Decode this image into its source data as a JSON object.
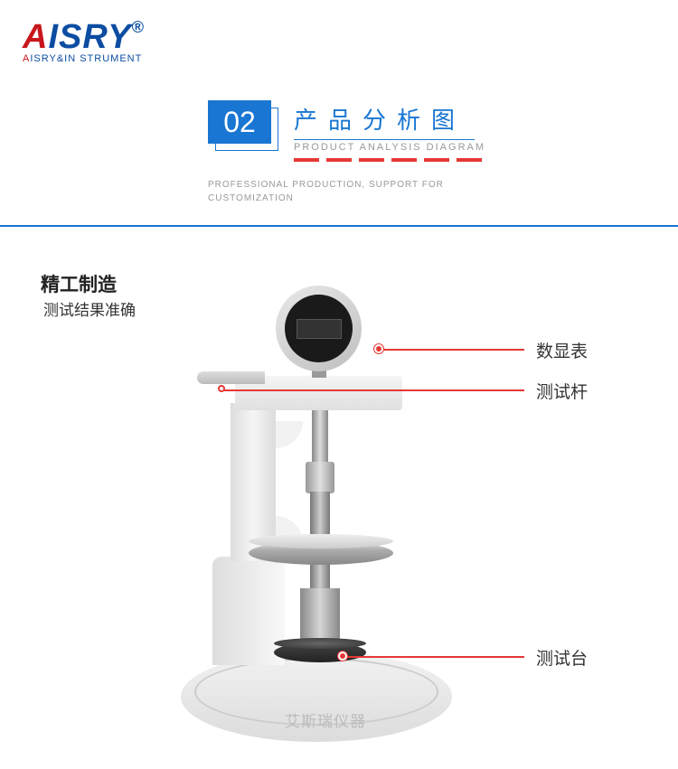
{
  "logo": {
    "brand": "AISRY",
    "reg": "®",
    "tagline_first": "A",
    "tagline_rest": "ISRY&IN STRUMENT"
  },
  "header": {
    "number": "02",
    "title_cn": "产品分析图",
    "title_en": "PRODUCT ANALYSIS DIAGRAM",
    "subtitle_line1": "PROFESSIONAL PRODUCTION, SUPPORT FOR",
    "subtitle_line2": "CUSTOMIZATION",
    "dash_color": "#e53935",
    "num_bg": "#1976d2"
  },
  "feature": {
    "title": "精工制造",
    "subtitle": "测试结果准确"
  },
  "callouts": {
    "gauge": "数显表",
    "rod": "测试杆",
    "platform": "测试台",
    "line_color": "#e53935"
  },
  "watermark": "艾斯瑞仪器",
  "colors": {
    "brand_blue": "#0c4da2",
    "accent_blue": "#1976d2",
    "accent_red": "#e53935",
    "logo_red": "#c8161d",
    "text_dark": "#222",
    "text_gray": "#999"
  }
}
